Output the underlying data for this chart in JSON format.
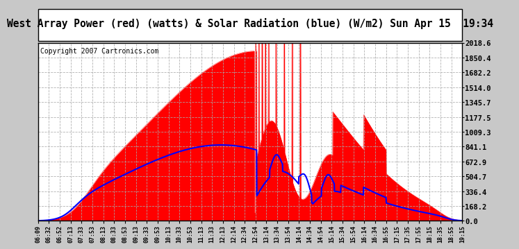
{
  "title": "West Array Power (red) (watts) & Solar Radiation (blue) (W/m2) Sun Apr 15  19:34",
  "copyright": "Copyright 2007 Cartronics.com",
  "bg_color": "#c8c8c8",
  "plot_bg_color": "#ffffff",
  "y_ticks": [
    0.0,
    168.2,
    336.4,
    504.7,
    672.9,
    841.1,
    1009.3,
    1177.5,
    1345.7,
    1514.0,
    1682.2,
    1850.4,
    2018.6
  ],
  "y_max": 2018.6,
  "x_labels": [
    "06:09",
    "06:32",
    "06:52",
    "07:13",
    "07:33",
    "07:53",
    "08:13",
    "08:33",
    "08:53",
    "09:13",
    "09:33",
    "09:53",
    "10:13",
    "10:33",
    "10:53",
    "11:13",
    "11:33",
    "12:13",
    "12:14",
    "12:34",
    "12:54",
    "13:14",
    "13:34",
    "13:54",
    "14:14",
    "14:34",
    "14:54",
    "15:14",
    "15:34",
    "15:54",
    "16:14",
    "16:34",
    "16:55",
    "17:15",
    "17:35",
    "17:55",
    "18:15",
    "18:35",
    "18:55",
    "19:15"
  ],
  "red_fill_color": "#ff0000",
  "blue_line_color": "#0000ff",
  "border_color": "#000000",
  "title_fontsize": 10.5,
  "copyright_fontsize": 7
}
